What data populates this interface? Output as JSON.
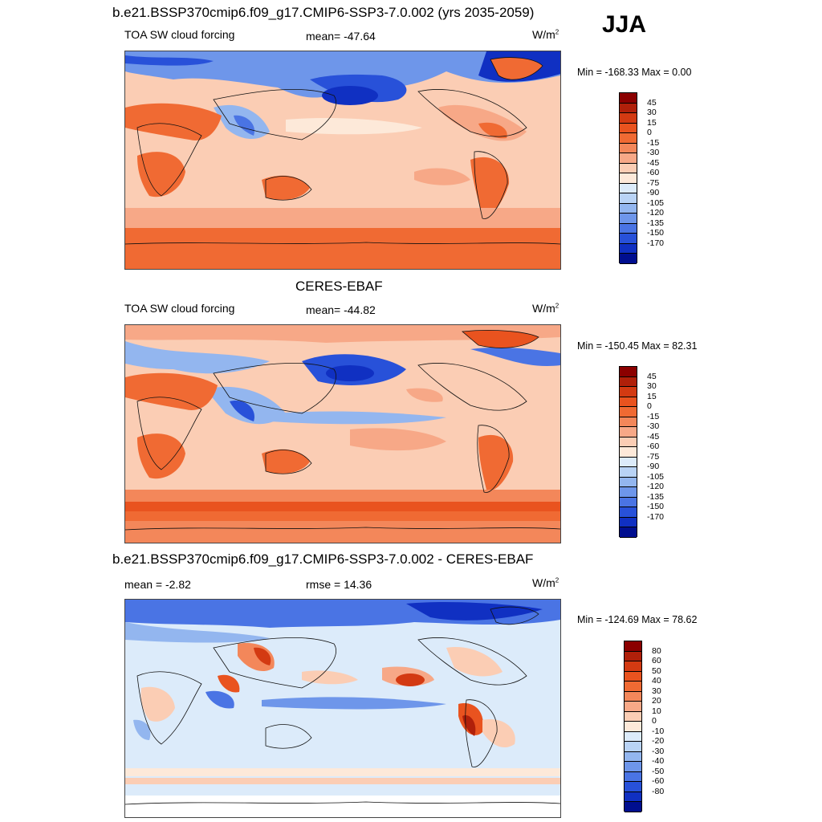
{
  "season": "JJA",
  "panels": [
    {
      "title": "b.e21.BSSP370cmip6.f09_g17.CMIP6-SSP3-7.0.002 (yrs 2035-2059)",
      "left_label": "TOA SW cloud forcing",
      "center_label": "mean= -47.64",
      "units": "W/m",
      "units_sup": "2",
      "minmax": "Min = -168.33 Max =   0.00",
      "palette": "abs"
    },
    {
      "title": "CERES-EBAF",
      "left_label": "TOA SW cloud forcing",
      "center_label": "mean= -44.82",
      "units": "W/m",
      "units_sup": "2",
      "minmax": "Min = -150.45 Max =  82.31",
      "palette": "abs"
    },
    {
      "title": "b.e21.BSSP370cmip6.f09_g17.CMIP6-SSP3-7.0.002 - CERES-EBAF",
      "left_label": "mean =  -2.82",
      "center_label": "rmse =  14.36",
      "units": "W/m",
      "units_sup": "2",
      "minmax": "Min = -124.69 Max =  78.62",
      "palette": "diff"
    }
  ],
  "colorbars": {
    "abs": {
      "ticks": [
        "45",
        "30",
        "15",
        "0",
        "-15",
        "-30",
        "-45",
        "-60",
        "-75",
        "-90",
        "-105",
        "-120",
        "-135",
        "-150",
        "-170"
      ],
      "colors": [
        "#8b0000",
        "#b0200a",
        "#d33a12",
        "#e9531f",
        "#f06a33",
        "#f3875a",
        "#f7a887",
        "#fbcdb4",
        "#fde9d9",
        "#dcebfa",
        "#b9d3f5",
        "#93b6ef",
        "#6e96ea",
        "#4a74e4",
        "#2851d9",
        "#1030c2",
        "#000e8f"
      ]
    },
    "diff": {
      "ticks": [
        "80",
        "60",
        "50",
        "40",
        "30",
        "20",
        "10",
        "0",
        "-10",
        "-20",
        "-30",
        "-40",
        "-50",
        "-60",
        "-80"
      ],
      "colors": [
        "#8b0000",
        "#b0200a",
        "#d33a12",
        "#e9531f",
        "#f06a33",
        "#f3875a",
        "#f7a887",
        "#fbcdb4",
        "#fde9d9",
        "#dcebfa",
        "#b9d3f5",
        "#93b6ef",
        "#6e96ea",
        "#4a74e4",
        "#2851d9",
        "#1030c2",
        "#000e8f"
      ]
    }
  }
}
